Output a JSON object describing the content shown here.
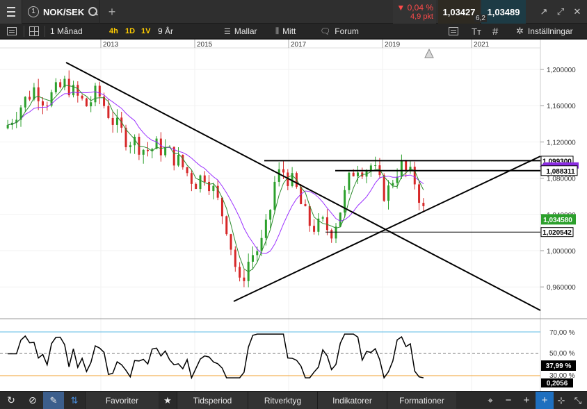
{
  "topbar": {
    "tab_number": "1",
    "symbol": "NOK/SEK",
    "change_pct": "▼ 0,04 %",
    "change_pkt": "4,9 pkt",
    "bid": "1,03427",
    "ask": "1,03489",
    "spread": "6,2"
  },
  "toolbar": {
    "timeframe": "1 Månad",
    "periods": [
      "4h",
      "1D",
      "1V"
    ],
    "range": "9 År",
    "templates": "Mallar",
    "mitt": "Mitt",
    "forum": "Forum",
    "settings": "Inställningar"
  },
  "chart_data": {
    "type": "candlestick",
    "x_ticks": [
      "2013",
      "2015",
      "2017",
      "2019",
      "2021"
    ],
    "y_ticks": [
      "1,200000",
      "1,160000",
      "1,120000",
      "1,080000",
      "1,040000",
      "1,000000",
      "0,960000"
    ],
    "y_range": [
      0.935,
      1.23
    ],
    "price_labels": {
      "level_top": "1,099300",
      "level_mid": "1,088311",
      "current": "1,034580",
      "level_low": "1,020542"
    },
    "horizontal_levels": [
      1.0993,
      1.0883,
      1.02054
    ],
    "current_price": 1.03458,
    "candle_count": 96,
    "colors": {
      "up": "#2ca02c",
      "down": "#d62728",
      "ma_fast": "#2e8b2e",
      "ma_slow": "#9b30ff",
      "lines": "#000000"
    }
  },
  "rsi": {
    "levels": [
      "70,00 %",
      "50,00 %",
      "30,00 %"
    ],
    "current": "37,99 %",
    "extra": "0,2056"
  },
  "bottombar": {
    "favorites": "Favoriter",
    "period": "Tidsperiod",
    "tools": "Ritverktyg",
    "indicators": "Indikatorer",
    "formations": "Formationer"
  }
}
